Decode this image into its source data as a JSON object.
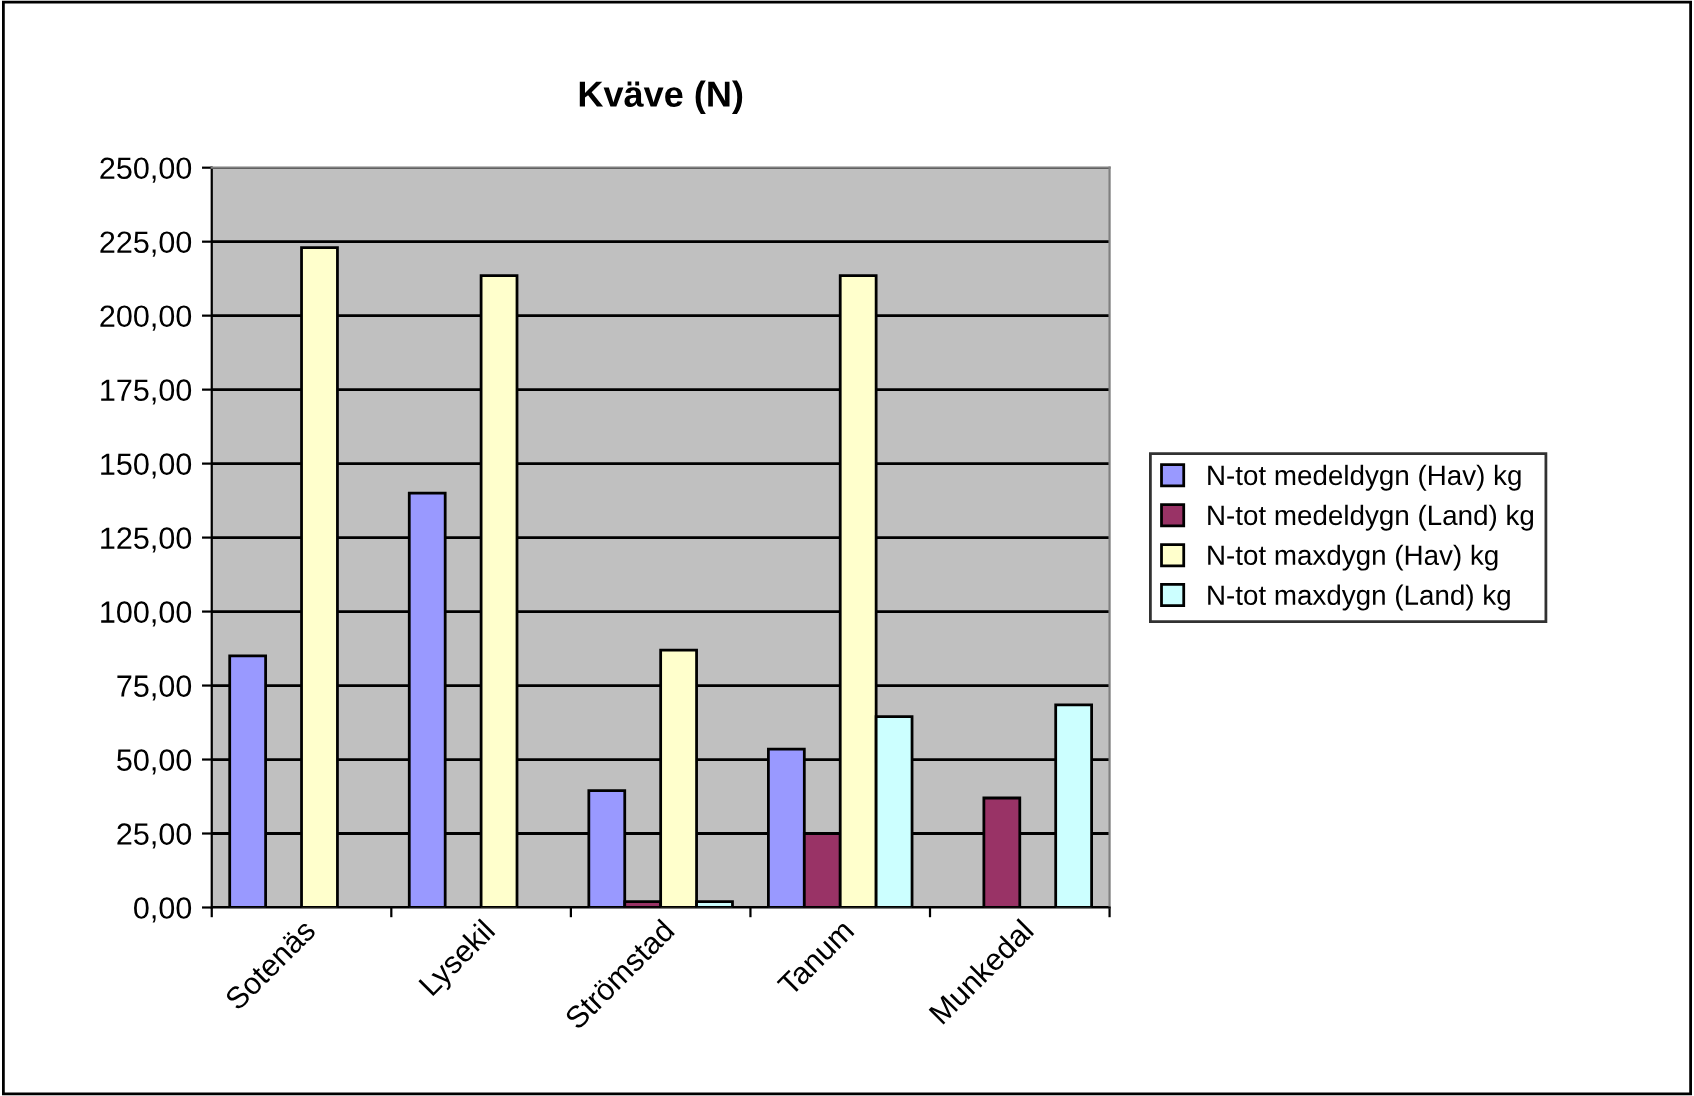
{
  "chart_data": {
    "type": "bar",
    "title": "Kväve (N)",
    "categories": [
      "Sotenäs",
      "Lysekil",
      "Strömstad",
      "Tanum",
      "Munkedal"
    ],
    "series": [
      {
        "name": "N-tot medeldygn (Hav) kg",
        "color": "#9999ff",
        "values": [
          85,
          140,
          39.5,
          53.5,
          null
        ]
      },
      {
        "name": "N-tot medeldygn (Land) kg",
        "color": "#993366",
        "values": [
          null,
          null,
          2,
          25,
          37
        ]
      },
      {
        "name": "N-tot maxdygn (Hav) kg",
        "color": "#ffffcc",
        "values": [
          223,
          213.5,
          87,
          213.5,
          null
        ]
      },
      {
        "name": "N-tot maxdygn (Land) kg",
        "color": "#ccffff",
        "values": [
          null,
          null,
          2,
          64.5,
          68.5
        ]
      }
    ],
    "ylim": [
      0,
      250
    ],
    "yticks": [
      {
        "value": 0,
        "label": "0,00"
      },
      {
        "value": 25,
        "label": "25,00"
      },
      {
        "value": 50,
        "label": "50,00"
      },
      {
        "value": 75,
        "label": "75,00"
      },
      {
        "value": 100,
        "label": "100,00"
      },
      {
        "value": 125,
        "label": "125,00"
      },
      {
        "value": 150,
        "label": "150,00"
      },
      {
        "value": 175,
        "label": "175,00"
      },
      {
        "value": 200,
        "label": "200,00"
      },
      {
        "value": 225,
        "label": "225,00"
      },
      {
        "value": 250,
        "label": "250,00"
      }
    ],
    "grid": "y",
    "legend": "right"
  }
}
